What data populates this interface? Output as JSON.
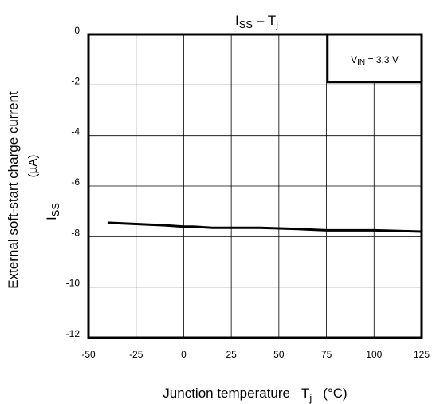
{
  "chart_data": {
    "type": "line",
    "title": {
      "main": "I",
      "sub": "SS",
      "dash": " – T",
      "sub2": "j"
    },
    "xlabel": {
      "text": "Junction temperature",
      "symbol": "T",
      "sub": "j",
      "unit": "(°C)"
    },
    "ylabel": {
      "line1": "External soft-start charge current",
      "line2": "(µA)",
      "symbol": "I",
      "sub": "SS"
    },
    "xlim": [
      -50,
      125
    ],
    "ylim": [
      -12,
      0
    ],
    "xticks": [
      -50,
      -25,
      0,
      25,
      50,
      75,
      100,
      125
    ],
    "yticks": [
      0,
      -2,
      -4,
      -6,
      -8,
      -10,
      -12
    ],
    "grid": true,
    "annotation": {
      "prefix": "V",
      "sub": "IN",
      "value": " = 3.3 V"
    },
    "series": [
      {
        "x": [
          -40,
          -25,
          -10,
          0,
          5,
          15,
          25,
          40,
          60,
          75,
          90,
          100,
          110,
          125
        ],
        "y": [
          -7.45,
          -7.5,
          -7.55,
          -7.6,
          -7.6,
          -7.65,
          -7.65,
          -7.65,
          -7.7,
          -7.75,
          -7.75,
          -7.75,
          -7.77,
          -7.8
        ],
        "color": "#000000"
      }
    ]
  }
}
